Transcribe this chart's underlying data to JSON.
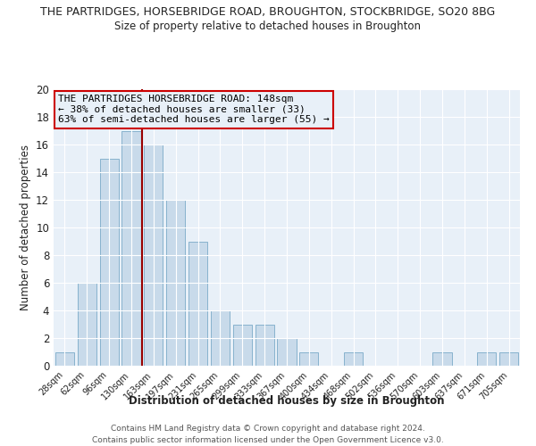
{
  "title": "THE PARTRIDGES, HORSEBRIDGE ROAD, BROUGHTON, STOCKBRIDGE, SO20 8BG",
  "subtitle": "Size of property relative to detached houses in Broughton",
  "xlabel": "Distribution of detached houses by size in Broughton",
  "ylabel": "Number of detached properties",
  "bar_labels": [
    "28sqm",
    "62sqm",
    "96sqm",
    "130sqm",
    "163sqm",
    "197sqm",
    "231sqm",
    "265sqm",
    "299sqm",
    "333sqm",
    "367sqm",
    "400sqm",
    "434sqm",
    "468sqm",
    "502sqm",
    "536sqm",
    "570sqm",
    "603sqm",
    "637sqm",
    "671sqm",
    "705sqm"
  ],
  "bar_values": [
    1,
    6,
    15,
    17,
    16,
    12,
    9,
    4,
    3,
    3,
    2,
    1,
    0,
    1,
    0,
    0,
    0,
    1,
    0,
    1,
    1
  ],
  "bar_color": "#c8daea",
  "bar_edgecolor": "#7aaac8",
  "vline_x": 3.5,
  "vline_color": "#990000",
  "annotation_title": "THE PARTRIDGES HORSEBRIDGE ROAD: 148sqm",
  "annotation_line1": "← 38% of detached houses are smaller (33)",
  "annotation_line2": "63% of semi-detached houses are larger (55) →",
  "annotation_box_edgecolor": "#cc0000",
  "ylim": [
    0,
    20
  ],
  "yticks": [
    0,
    2,
    4,
    6,
    8,
    10,
    12,
    14,
    16,
    18,
    20
  ],
  "footer": "Contains HM Land Registry data © Crown copyright and database right 2024.\nContains public sector information licensed under the Open Government Licence v3.0.",
  "bg_color": "#ffffff",
  "plot_bg_color": "#e8f0f8",
  "grid_color": "#ffffff"
}
